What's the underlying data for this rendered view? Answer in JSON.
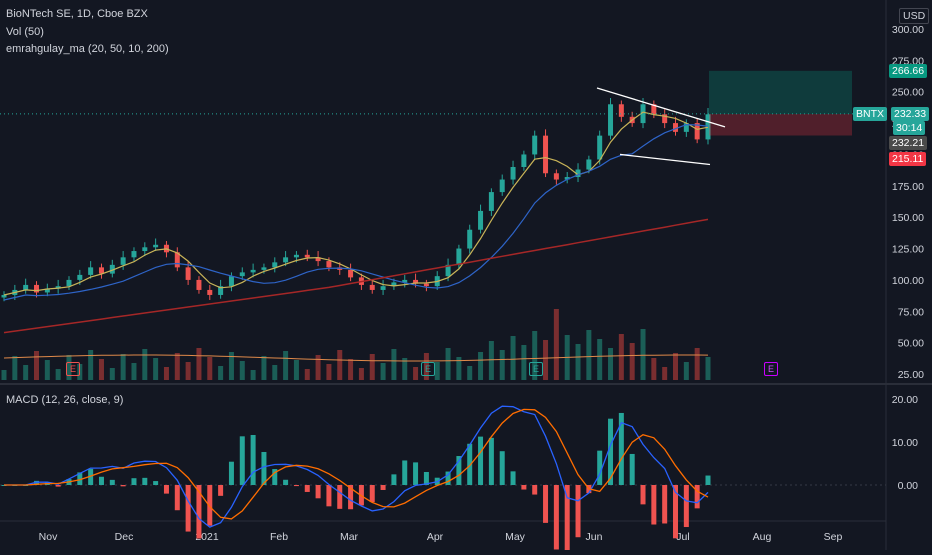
{
  "header": {
    "title": "BioNTech SE, 1D, Cboe BZX",
    "vol_label": "Vol (50)",
    "ma_label": "emrahgulay_ma (20, 50, 10, 200)",
    "macd_label": "MACD (12, 26, close, 9)",
    "currency": "USD"
  },
  "chart_data": [
    {
      "type": "candlestick",
      "symbol": "BNTX",
      "y_ticks": [
        "300.00",
        "275.00",
        "250.00",
        "225.00",
        "200.00",
        "175.00",
        "150.00",
        "125.00",
        "100.00",
        "75.00",
        "50.00",
        "25.00"
      ],
      "x_ticks": [
        "Nov",
        "Dec",
        "2021",
        "Feb",
        "Mar",
        "Apr",
        "May",
        "Jun",
        "Jul",
        "Aug",
        "Sep"
      ],
      "ylim": [
        20,
        310
      ],
      "last_price": "232.33",
      "countdown": "30:14",
      "target_price": "266.66",
      "entry_price": "232.21",
      "stop_price": "215.11",
      "earnings_markers": [
        "E",
        "E",
        "E",
        "E"
      ],
      "closes_approx": [
        88,
        92,
        96,
        90,
        93,
        95,
        100,
        104,
        110,
        105,
        112,
        118,
        123,
        126,
        128,
        122,
        110,
        100,
        92,
        88,
        95,
        103,
        106,
        108,
        110,
        114,
        118,
        120,
        118,
        115,
        110,
        108,
        102,
        96,
        92,
        95,
        98,
        100,
        97,
        95,
        103,
        112,
        125,
        140,
        155,
        170,
        180,
        190,
        200,
        215,
        185,
        180,
        182,
        188,
        196,
        215,
        240,
        230,
        225,
        240,
        232,
        225,
        218,
        225,
        212,
        232
      ]
    },
    {
      "type": "line",
      "indicator": "MACD",
      "y_ticks": [
        "20.00",
        "10.00",
        "0.00"
      ]
    }
  ]
}
